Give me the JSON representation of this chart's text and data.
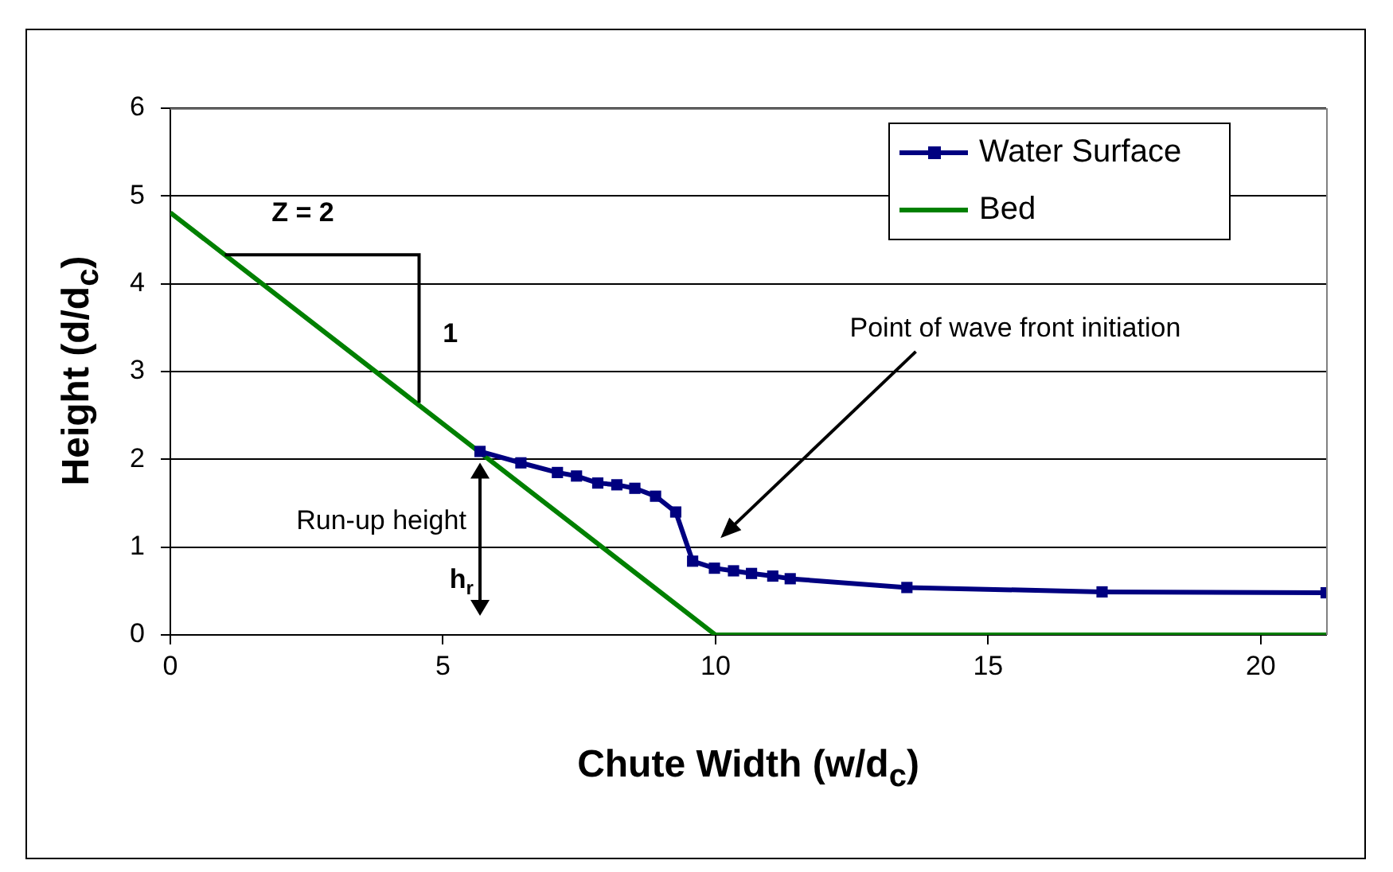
{
  "chart_data": {
    "type": "line",
    "xlabel": "Chute Width (w/d$_{c}$)",
    "ylabel": "Height (d/d$_{c}$)",
    "xlim": [
      0,
      21.2
    ],
    "xticks": [
      0,
      5,
      10,
      15,
      20
    ],
    "ylim": [
      0,
      6
    ],
    "yticks": [
      0,
      1,
      2,
      3,
      4,
      5,
      6
    ],
    "grid": "y",
    "legend": "top right",
    "series": [
      {
        "name": "Water Surface",
        "color": "#000080",
        "marker": "square",
        "x": [
          5.68,
          6.43,
          7.1,
          7.45,
          7.84,
          8.19,
          8.52,
          8.9,
          9.27,
          9.58,
          9.98,
          10.33,
          10.66,
          11.05,
          11.37,
          13.51,
          17.09,
          21.2
        ],
        "values": [
          2.09,
          1.96,
          1.85,
          1.81,
          1.73,
          1.71,
          1.67,
          1.58,
          1.4,
          0.84,
          0.76,
          0.73,
          0.7,
          0.67,
          0.64,
          0.54,
          0.49,
          0.48
        ]
      },
      {
        "name": "Bed",
        "color": "#008000",
        "marker": "none",
        "x": [
          0,
          10,
          21.2
        ],
        "values": [
          4.81,
          0,
          0
        ]
      }
    ],
    "annotations": [
      {
        "text": "Z = 2",
        "x": 1.0,
        "y": 4.33
      },
      {
        "text": "1",
        "x": 4.55,
        "y": 2.62
      },
      {
        "text": "Run-up height",
        "x": 5.68,
        "y": 2.09
      },
      "h$_{r}$",
      "Point of wave front initiation"
    ]
  }
}
